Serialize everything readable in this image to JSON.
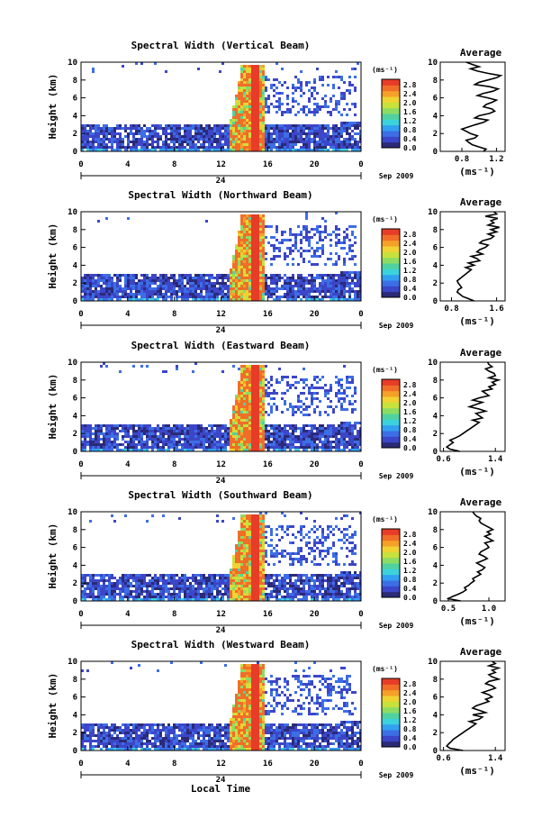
{
  "panels": [
    {
      "title": "Spectral Width (Vertical Beam)",
      "avg_title": "Average",
      "avg_xticks": [
        "0.8",
        "1.2"
      ],
      "avg_xlim": [
        0.55,
        1.3
      ],
      "avg_profile": [
        1.05,
        1.08,
        1.0,
        0.92,
        0.88,
        0.85,
        0.95,
        0.98,
        0.9,
        0.85,
        0.8,
        0.88,
        0.96,
        1.05,
        1.1,
        0.95,
        1.0,
        1.12,
        1.18,
        1.15,
        1.05,
        1.08,
        1.15,
        1.2,
        1.1,
        0.98,
        1.05,
        1.16,
        1.22,
        1.12,
        0.95,
        1.0,
        1.1,
        1.2,
        1.25,
        1.1,
        0.98,
        0.9,
        1.0,
        0.92,
        0.85
      ]
    },
    {
      "title": "Spectral Width (Northward Beam)",
      "avg_title": "Average",
      "avg_xticks": [
        "0.8",
        "1.6"
      ],
      "avg_xlim": [
        0.6,
        1.75
      ],
      "avg_profile": [
        1.2,
        1.1,
        1.0,
        0.95,
        0.9,
        0.92,
        0.98,
        0.95,
        0.92,
        0.9,
        0.95,
        1.0,
        1.05,
        1.1,
        1.15,
        1.05,
        1.2,
        1.1,
        1.3,
        1.25,
        1.15,
        1.35,
        1.25,
        1.3,
        1.4,
        1.45,
        1.3,
        1.35,
        1.5,
        1.55,
        1.45,
        1.6,
        1.5,
        1.65,
        1.45,
        1.55,
        1.5,
        1.62,
        1.4,
        1.6,
        1.55
      ]
    },
    {
      "title": "Spectral Width (Eastward Beam)",
      "avg_title": "Average",
      "avg_xticks": [
        "0.6",
        "1.4"
      ],
      "avg_xlim": [
        0.55,
        1.55
      ],
      "avg_profile": [
        0.85,
        0.7,
        0.65,
        0.7,
        0.75,
        0.7,
        0.78,
        0.85,
        0.9,
        0.95,
        1.0,
        1.05,
        1.1,
        1.15,
        1.05,
        1.2,
        1.15,
        1.1,
        1.25,
        1.15,
        1.0,
        1.1,
        1.2,
        1.05,
        1.15,
        1.3,
        1.25,
        1.2,
        1.35,
        1.3,
        1.4,
        1.35,
        1.45,
        1.3,
        1.4,
        1.38,
        1.3,
        1.25,
        1.35,
        1.3,
        1.28
      ]
    },
    {
      "title": "Spectral Width (Southward Beam)",
      "avg_title": "Average",
      "avg_xticks": [
        "0.5",
        "1.0"
      ],
      "avg_xlim": [
        0.4,
        1.2
      ],
      "avg_profile": [
        0.65,
        0.5,
        0.55,
        0.62,
        0.68,
        0.72,
        0.7,
        0.75,
        0.78,
        0.82,
        0.8,
        0.85,
        0.9,
        0.86,
        0.92,
        0.95,
        0.9,
        0.85,
        0.92,
        0.98,
        0.94,
        0.88,
        0.9,
        0.95,
        1.0,
        0.98,
        0.95,
        1.05,
        1.0,
        0.95,
        1.02,
        0.98,
        1.05,
        1.0,
        0.95,
        0.9,
        0.88,
        0.9,
        0.85,
        0.82,
        0.8
      ]
    },
    {
      "title": "Spectral Width (Westward Beam)",
      "avg_title": "Average",
      "avg_xticks": [
        "0.6",
        "1.4"
      ],
      "avg_xlim": [
        0.55,
        1.55
      ],
      "avg_profile": [
        0.9,
        0.7,
        0.65,
        0.68,
        0.72,
        0.75,
        0.8,
        0.85,
        0.9,
        0.95,
        1.0,
        1.05,
        1.1,
        1.0,
        1.15,
        1.2,
        1.05,
        1.25,
        1.15,
        1.05,
        1.1,
        1.2,
        1.3,
        1.25,
        1.35,
        1.3,
        1.2,
        1.3,
        1.4,
        1.35,
        1.25,
        1.3,
        1.45,
        1.35,
        1.3,
        1.4,
        1.35,
        1.45,
        1.3,
        1.4,
        1.35
      ]
    }
  ],
  "height_label": "Height (km)",
  "yticks": [
    "0",
    "2",
    "4",
    "6",
    "8",
    "10"
  ],
  "xticks": [
    "0",
    "4",
    "8",
    "12",
    "16",
    "20",
    "0"
  ],
  "date_tick": "24",
  "date_label": "Sep 2009",
  "unit_label": "(ms⁻¹)",
  "colorbar_ticks": [
    "0.0",
    "0.4",
    "0.8",
    "1.2",
    "1.6",
    "2.0",
    "2.4",
    "2.8"
  ],
  "xlabel": "Local Time",
  "colors": {
    "colormap": [
      "#2a2a78",
      "#3c46c8",
      "#3c6ee6",
      "#32a0f0",
      "#3cd2dc",
      "#50d2a0",
      "#8cdc64",
      "#c8e13c",
      "#f0d232",
      "#f5a028",
      "#f06e28",
      "#e63c28"
    ],
    "background": "#ffffff"
  },
  "chart_data": [
    {
      "type": "heatmap",
      "title": "Spectral Width (Vertical Beam)",
      "ylabel": "Height (km)",
      "xlabel": "Local Time",
      "xlim": [
        0,
        24
      ],
      "ylim": [
        0,
        10
      ],
      "colorbar_range": [
        0.0,
        3.0
      ],
      "colorbar_unit": "(ms⁻¹)"
    },
    {
      "type": "line",
      "title": "Average",
      "xlabel": "(ms⁻¹)",
      "ylim": [
        0,
        10
      ]
    }
  ]
}
